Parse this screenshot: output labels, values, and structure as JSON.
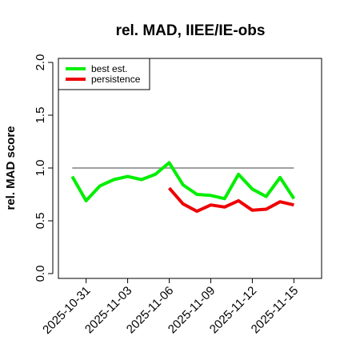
{
  "chart_data": {
    "type": "line",
    "title": "rel. MAD, IIEE/IE-obs",
    "xlabel": "",
    "ylabel": "rel. MAD score",
    "ylim": [
      0.0,
      2.0
    ],
    "yticks": [
      0.0,
      0.5,
      1.0,
      1.5,
      2.0
    ],
    "ytick_labels": [
      "0.0",
      "0.5",
      "1.0",
      "1.5",
      "2.0"
    ],
    "x": [
      "2025-10-30",
      "2025-10-31",
      "2025-11-01",
      "2025-11-02",
      "2025-11-03",
      "2025-11-04",
      "2025-11-05",
      "2025-11-06",
      "2025-11-07",
      "2025-11-08",
      "2025-11-09",
      "2025-11-10",
      "2025-11-11",
      "2025-11-12",
      "2025-11-13",
      "2025-11-14",
      "2025-11-15"
    ],
    "xticks": [
      "2025-10-31",
      "2025-11-03",
      "2025-11-06",
      "2025-11-09",
      "2025-11-12",
      "2025-11-15"
    ],
    "xlim": [
      "2025-10-29",
      "2025-11-17"
    ],
    "reference_line": 1.0,
    "grid": false,
    "legend_position": "top-left",
    "series": [
      {
        "name": "best est.",
        "color": "#00ee00",
        "values": [
          0.92,
          0.69,
          0.83,
          0.89,
          0.92,
          0.89,
          0.94,
          1.05,
          0.84,
          0.75,
          0.74,
          0.71,
          0.94,
          0.8,
          0.73,
          0.91,
          0.71
        ]
      },
      {
        "name": "persistence",
        "color": "#ee0000",
        "values": [
          null,
          null,
          null,
          null,
          null,
          null,
          null,
          0.81,
          0.66,
          0.59,
          0.65,
          0.63,
          0.69,
          0.6,
          0.61,
          0.68,
          0.65
        ]
      }
    ],
    "reference_color": "#808080"
  }
}
